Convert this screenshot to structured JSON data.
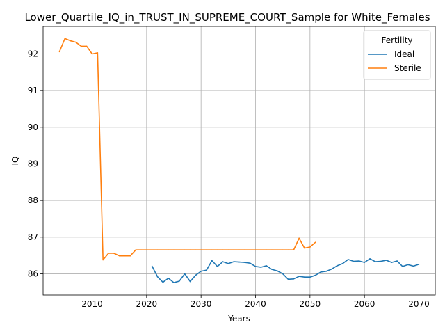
{
  "chart_data": {
    "type": "line",
    "title": "Lower_Quartile_IQ_in_TRUST_IN_SUPREME_COURT_Sample for White_Females",
    "xlabel": "Years",
    "ylabel": "IQ",
    "xlim": [
      2001,
      2073
    ],
    "ylim": [
      85.42,
      92.75
    ],
    "xticks": [
      2010,
      2020,
      2030,
      2040,
      2050,
      2060,
      2070
    ],
    "yticks": [
      86,
      87,
      88,
      89,
      90,
      91,
      92
    ],
    "grid": true,
    "legend": {
      "title": "Fertility",
      "position": "top-right"
    },
    "series": [
      {
        "name": "Ideal",
        "color": "#1f77b4",
        "x": [
          2021,
          2022,
          2023,
          2024,
          2025,
          2026,
          2027,
          2028,
          2029,
          2030,
          2031,
          2032,
          2033,
          2034,
          2035,
          2036,
          2037,
          2038,
          2039,
          2040,
          2041,
          2042,
          2043,
          2044,
          2045,
          2046,
          2047,
          2048,
          2049,
          2050,
          2051,
          2052,
          2053,
          2054,
          2055,
          2056,
          2057,
          2058,
          2059,
          2060,
          2061,
          2062,
          2063,
          2064,
          2065,
          2066,
          2067,
          2068,
          2069,
          2070
        ],
        "y": [
          86.21,
          85.92,
          85.77,
          85.88,
          85.76,
          85.8,
          86.0,
          85.79,
          85.96,
          86.07,
          86.1,
          86.36,
          86.2,
          86.33,
          86.28,
          86.33,
          86.32,
          86.31,
          86.29,
          86.2,
          86.18,
          86.22,
          86.12,
          86.08,
          86.0,
          85.85,
          85.86,
          85.93,
          85.91,
          85.91,
          85.96,
          86.05,
          86.07,
          86.13,
          86.22,
          86.28,
          86.39,
          86.34,
          86.35,
          86.31,
          86.41,
          86.33,
          86.34,
          86.37,
          86.31,
          86.35,
          86.2,
          86.25,
          86.21,
          86.26
        ]
      },
      {
        "name": "Sterile",
        "color": "#ff7f0e",
        "x": [
          2004,
          2005,
          2006,
          2007,
          2008,
          2009,
          2010,
          2011,
          2012,
          2013,
          2014,
          2015,
          2016,
          2017,
          2018,
          2019,
          2020,
          2021,
          2022,
          2023,
          2024,
          2025,
          2026,
          2027,
          2028,
          2029,
          2030,
          2031,
          2032,
          2033,
          2034,
          2035,
          2036,
          2037,
          2038,
          2039,
          2040,
          2041,
          2042,
          2043,
          2044,
          2045,
          2046,
          2047,
          2048,
          2049,
          2050,
          2051
        ],
        "y": [
          92.06,
          92.42,
          92.36,
          92.32,
          92.21,
          92.21,
          92.0,
          92.03,
          86.38,
          86.56,
          86.56,
          86.49,
          86.49,
          86.49,
          86.65,
          86.65,
          86.65,
          86.65,
          86.65,
          86.65,
          86.65,
          86.65,
          86.65,
          86.65,
          86.65,
          86.65,
          86.65,
          86.65,
          86.65,
          86.65,
          86.65,
          86.65,
          86.65,
          86.65,
          86.65,
          86.65,
          86.65,
          86.65,
          86.65,
          86.65,
          86.65,
          86.65,
          86.65,
          86.65,
          86.97,
          86.7,
          86.73,
          86.86
        ]
      }
    ]
  }
}
